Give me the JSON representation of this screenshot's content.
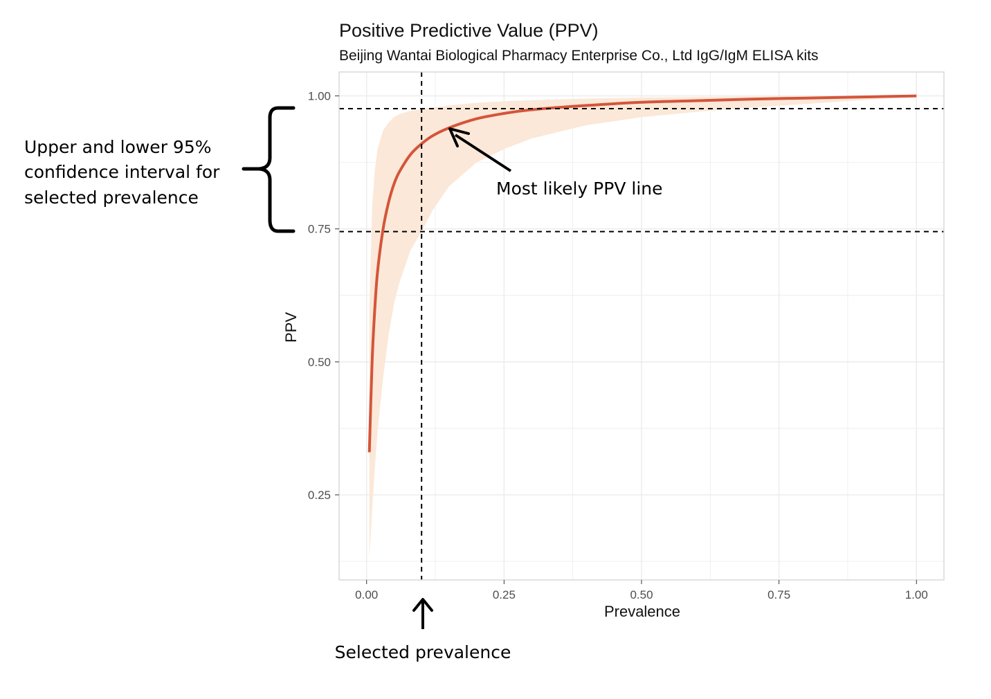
{
  "chart_data": {
    "type": "line",
    "title": "Positive Predictive Value (PPV)",
    "subtitle": "Beijing Wantai Biological Pharmacy Enterprise Co., Ltd IgG/IgM ELISA kits",
    "xlabel": "Prevalence",
    "ylabel": "PPV",
    "xlim": [
      -0.05,
      1.05
    ],
    "ylim": [
      0.09,
      1.045
    ],
    "x_ticks": [
      0.0,
      0.25,
      0.5,
      0.75,
      1.0
    ],
    "x_tick_labels": [
      "0.00",
      "0.25",
      "0.50",
      "0.75",
      "1.00"
    ],
    "y_ticks": [
      0.25,
      0.5,
      0.75,
      1.0
    ],
    "y_tick_labels": [
      "0.25",
      "0.50",
      "0.75",
      "1.00"
    ],
    "grid": true,
    "colors": {
      "line": "#d4553a",
      "ribbon": "#fbe8d8",
      "reference_line": "#000000",
      "grid": "#ebebeb",
      "panel_border": "#d9d9d9"
    },
    "series": [
      {
        "x": [
          0.005,
          0.01,
          0.015,
          0.02,
          0.03,
          0.04,
          0.05,
          0.06,
          0.08,
          0.1,
          0.12,
          0.15,
          0.2,
          0.25,
          0.3,
          0.4,
          0.5,
          0.6,
          0.7,
          0.8,
          0.9,
          1.0
        ],
        "values": [
          0.33,
          0.5,
          0.6,
          0.67,
          0.75,
          0.8,
          0.835,
          0.858,
          0.89,
          0.91,
          0.925,
          0.94,
          0.957,
          0.967,
          0.974,
          0.982,
          0.988,
          0.991,
          0.994,
          0.996,
          0.998,
          1.0
        ]
      }
    ],
    "ribbon": {
      "x": [
        0.005,
        0.01,
        0.015,
        0.02,
        0.03,
        0.04,
        0.05,
        0.06,
        0.08,
        0.1,
        0.12,
        0.15,
        0.2,
        0.25,
        0.3,
        0.4,
        0.5,
        0.6,
        0.7,
        0.8,
        0.9,
        1.0
      ],
      "lower": [
        0.13,
        0.22,
        0.3,
        0.37,
        0.47,
        0.55,
        0.61,
        0.65,
        0.71,
        0.745,
        0.785,
        0.83,
        0.875,
        0.9,
        0.92,
        0.945,
        0.96,
        0.97,
        0.978,
        0.985,
        0.992,
        0.998
      ],
      "upper": [
        0.6,
        0.79,
        0.86,
        0.9,
        0.935,
        0.95,
        0.96,
        0.966,
        0.972,
        0.975,
        0.978,
        0.982,
        0.987,
        0.99,
        0.992,
        0.995,
        0.997,
        0.998,
        0.999,
        0.9995,
        0.9998,
        1.0
      ]
    },
    "reference_lines": {
      "vertical_x": 0.1,
      "horizontal_y": [
        0.976,
        0.745
      ]
    },
    "annotations": {
      "ci_label": [
        "Upper and lower 95%",
        "confidence interval for",
        "selected prevalence"
      ],
      "line_label": "Most likely PPV line",
      "prevalence_label": "Selected prevalence"
    }
  }
}
